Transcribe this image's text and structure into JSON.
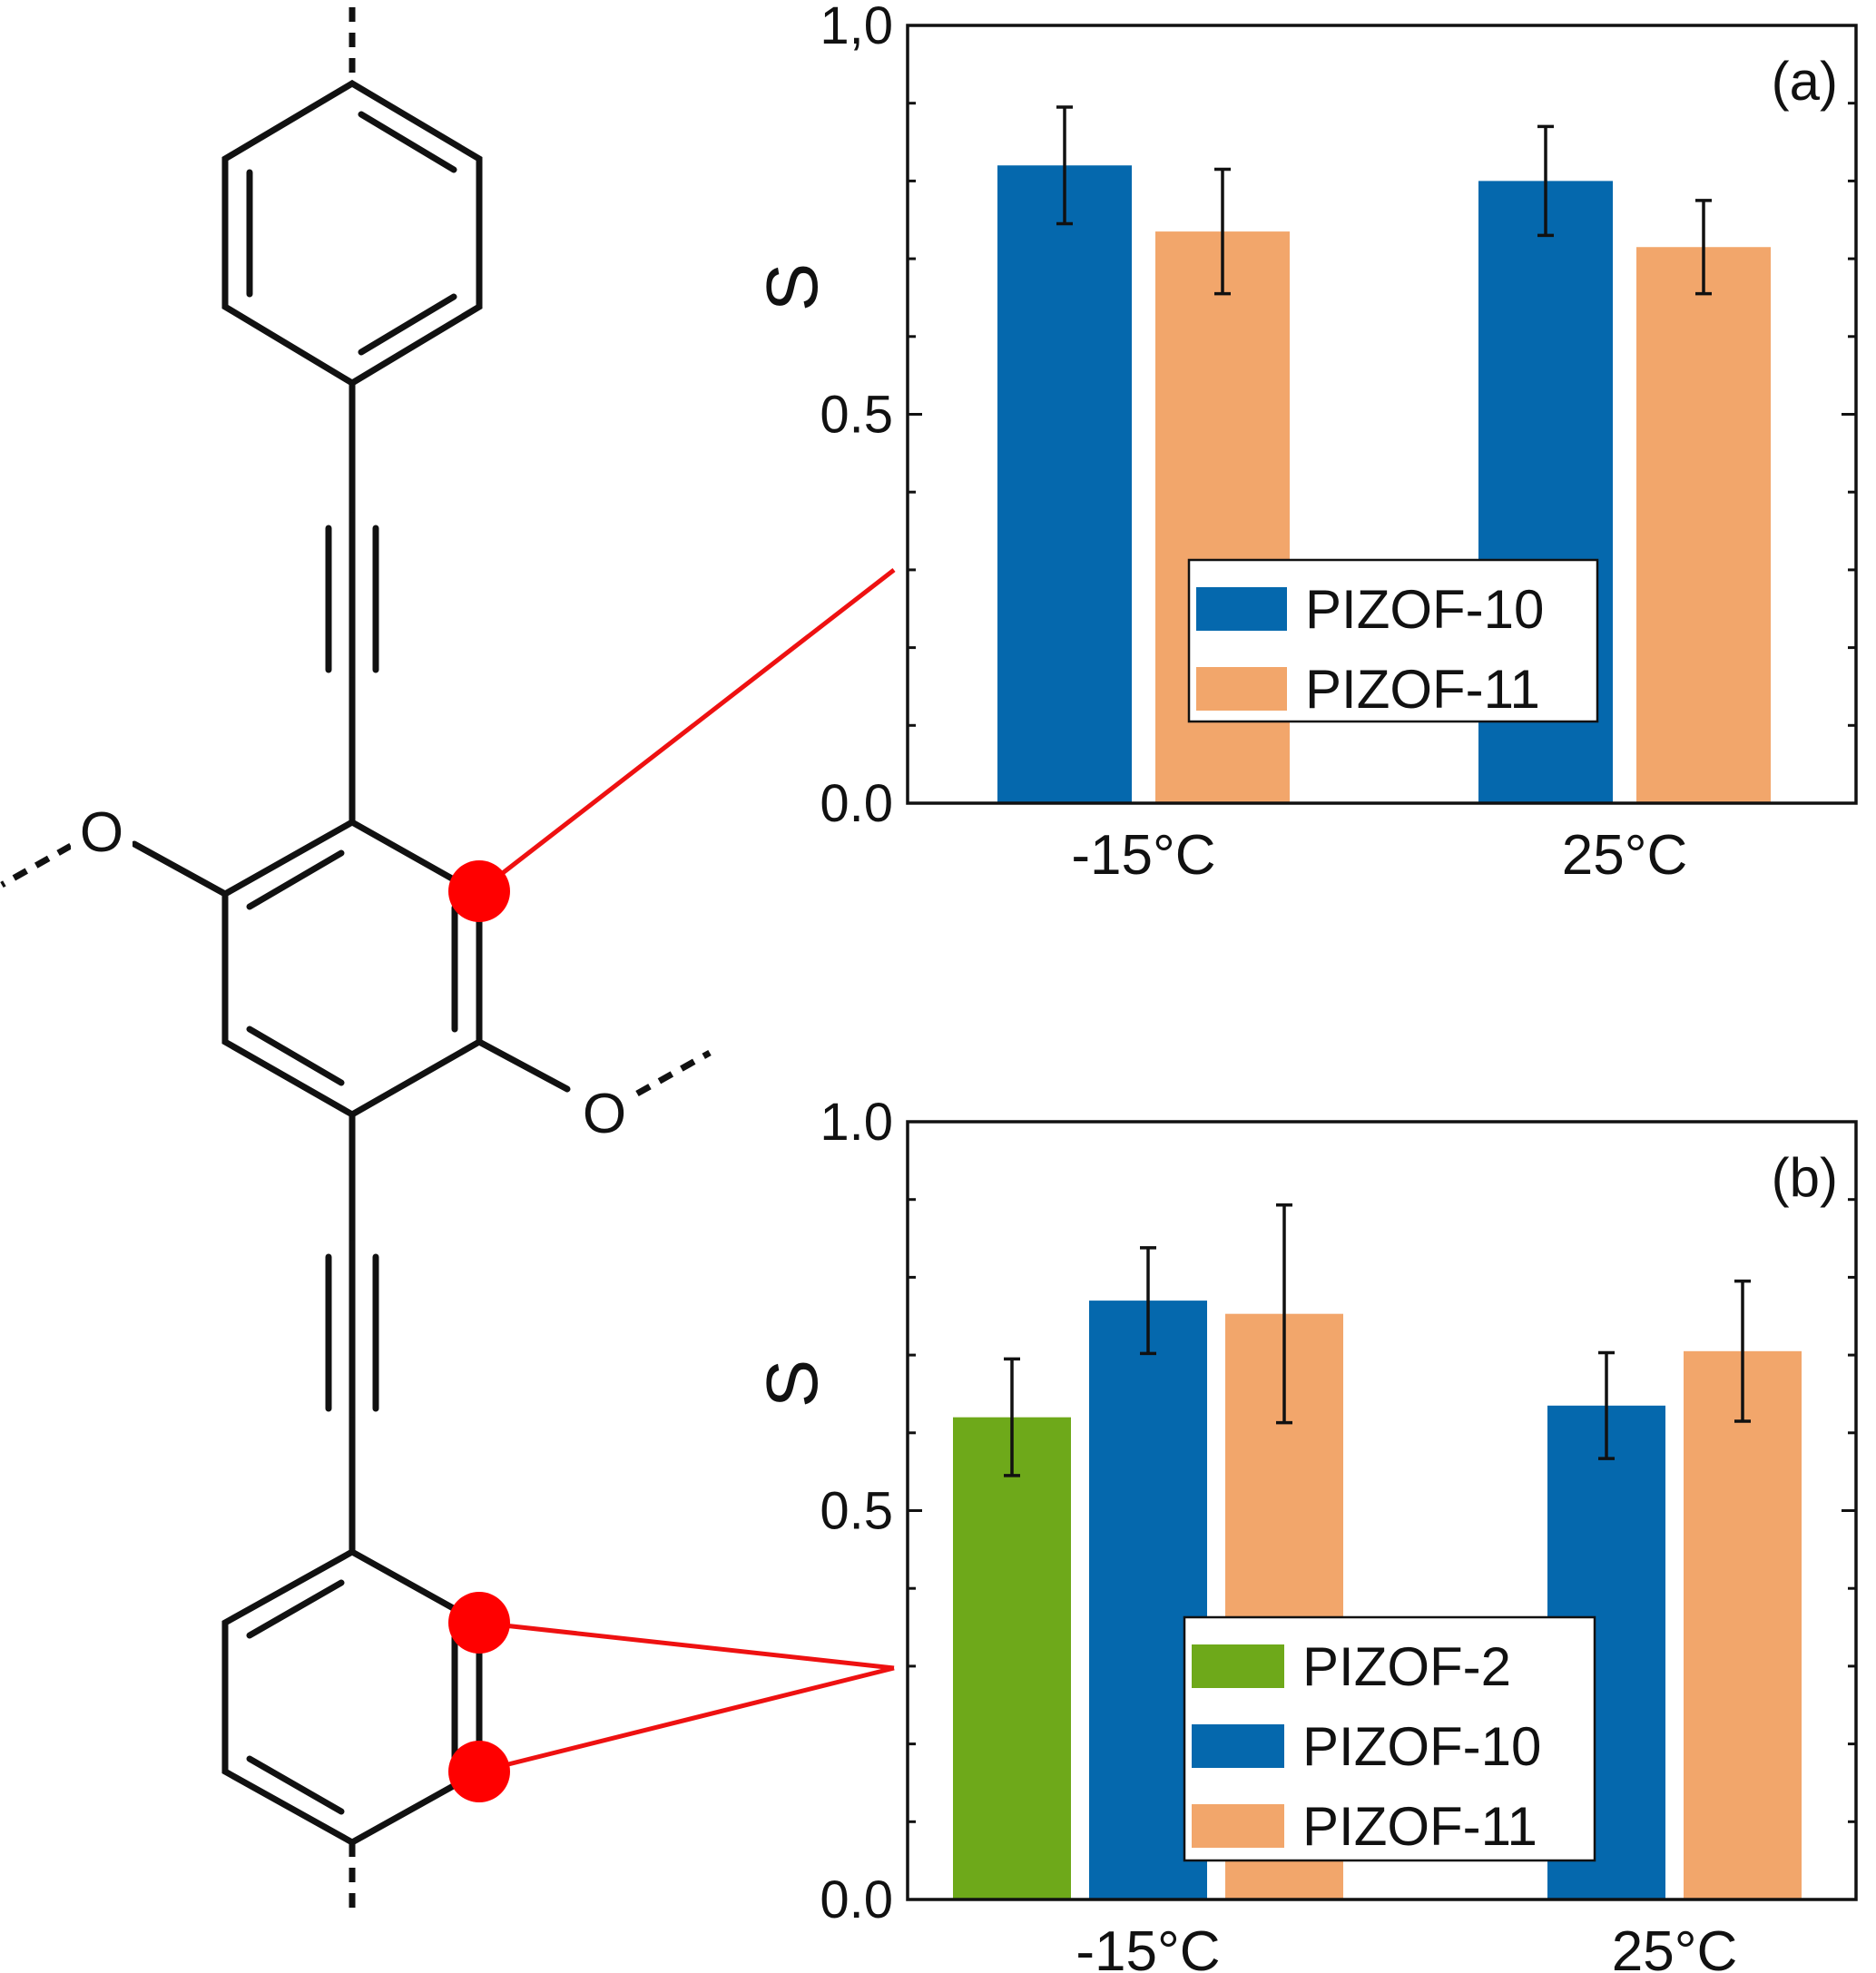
{
  "molecule": {
    "atom_labels": [
      "O",
      "O"
    ],
    "highlight_color": "#ff0000"
  },
  "chart_data": [
    {
      "type": "bar",
      "panel_label": "(a)",
      "ylabel": "S",
      "ylim": [
        0,
        1.0
      ],
      "yticks": [
        {
          "value": 0,
          "label": "0.0"
        },
        {
          "value": 0.5,
          "label": "0.5"
        },
        {
          "value": 1.0,
          "label": "1,0"
        }
      ],
      "categories": [
        "-15°C",
        "25°C"
      ],
      "series": [
        {
          "name": "PIZOF-10",
          "color": "#0568ad",
          "values": [
            0.82,
            0.8
          ],
          "errors": [
            0.075,
            0.07
          ]
        },
        {
          "name": "PIZOF-11",
          "color": "#f2a66b",
          "values": [
            0.735,
            0.715
          ],
          "errors": [
            0.08,
            0.06
          ]
        }
      ],
      "legend_position": "center-right",
      "grid": false
    },
    {
      "type": "bar",
      "panel_label": "(b)",
      "ylabel": "S",
      "ylim": [
        0,
        1.0
      ],
      "yticks": [
        {
          "value": 0,
          "label": "0.0"
        },
        {
          "value": 0.5,
          "label": "0.5"
        },
        {
          "value": 1.0,
          "label": "1.0"
        }
      ],
      "categories": [
        "-15°C",
        "25°C"
      ],
      "series": [
        {
          "name": "PIZOF-2",
          "color": "#6ea91a",
          "values": [
            0.62,
            null
          ],
          "errors": [
            0.075,
            null
          ]
        },
        {
          "name": "PIZOF-10",
          "color": "#0568ad",
          "values": [
            0.77,
            0.635
          ],
          "errors": [
            0.068,
            0.068
          ]
        },
        {
          "name": "PIZOF-11",
          "color": "#f2a66b",
          "values": [
            0.753,
            0.705
          ],
          "errors": [
            0.14,
            0.09
          ]
        }
      ],
      "legend_position": "bottom-center",
      "grid": false
    }
  ]
}
